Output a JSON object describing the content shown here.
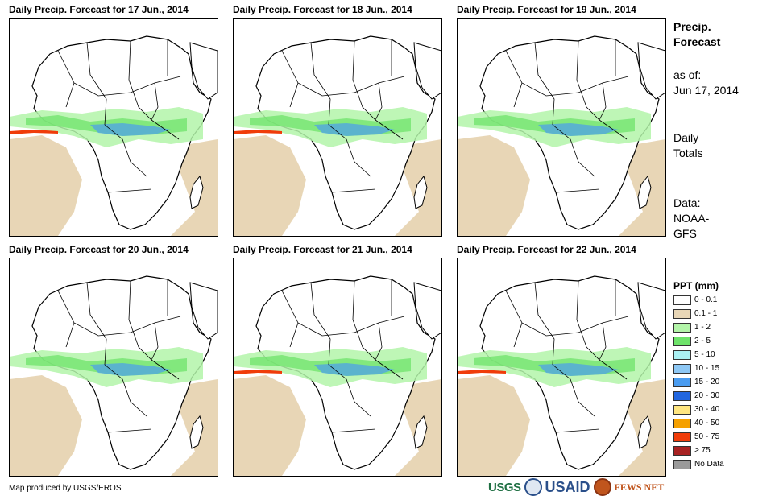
{
  "panels": [
    {
      "title": "Daily Precip. Forecast for 17 Jun., 2014"
    },
    {
      "title": "Daily Precip. Forecast for 18 Jun., 2014"
    },
    {
      "title": "Daily Precip. Forecast for 19 Jun., 2014"
    },
    {
      "title": "Daily Precip. Forecast for 20 Jun., 2014"
    },
    {
      "title": "Daily Precip. Forecast for 21 Jun., 2014"
    },
    {
      "title": "Daily Precip. Forecast for 22 Jun., 2014"
    }
  ],
  "sidebar": {
    "title_line1": "Precip.",
    "title_line2": "Forecast",
    "asof_label": "as of:",
    "asof_date": "Jun 17, 2014",
    "totals_line1": "Daily",
    "totals_line2": "Totals",
    "data_line1": "Data:",
    "data_line2": "NOAA-",
    "data_line3": "GFS"
  },
  "legend": {
    "title": "PPT (mm)",
    "items": [
      {
        "label": "0 - 0.1",
        "color": "#ffffff"
      },
      {
        "label": "0.1 - 1",
        "color": "#e8d6b6"
      },
      {
        "label": "1 - 2",
        "color": "#b3f5a9"
      },
      {
        "label": "2 - 5",
        "color": "#6ee36a"
      },
      {
        "label": "5 - 10",
        "color": "#aaf0f3"
      },
      {
        "label": "10 - 15",
        "color": "#8ec8f5"
      },
      {
        "label": "15 - 20",
        "color": "#4a9cf0"
      },
      {
        "label": "20 - 30",
        "color": "#2266e0"
      },
      {
        "label": "30 - 40",
        "color": "#ffe680"
      },
      {
        "label": "40 - 50",
        "color": "#f5a000"
      },
      {
        "label": "50 - 75",
        "color": "#f03c0a"
      },
      {
        "label": "> 75",
        "color": "#a82222"
      },
      {
        "label": "No Data",
        "color": "#9a9a9a"
      }
    ]
  },
  "footer": {
    "credit": "Map produced by USGS/EROS"
  },
  "logos": {
    "usgs": "USGS",
    "usaid": "USAID",
    "fews": "FEWS NET"
  }
}
